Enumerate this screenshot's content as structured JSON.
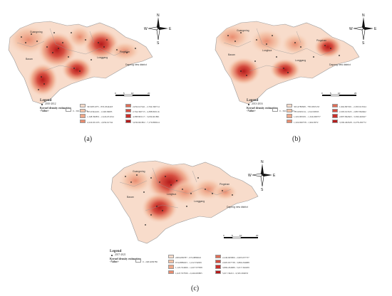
{
  "panels": [
    {
      "id": "a",
      "caption": "(a)",
      "legend_title": "Legend",
      "point_label": "2010-2012",
      "kde_label": "Kernel density estimation",
      "value_label": "<Value>",
      "classes": [
        "0 - 363.9831074",
        "363.9831075 - 835.0344418",
        "835.0344419 - 1,348.39685",
        "1,348.396851 - 2,224.651194",
        "2,224.651195 - 2,656.61744",
        "2,656.617441 - 2,764.390714",
        "2,764.390715 - 4,388.863116",
        "4,388.863117 - 5,636.661801",
        "5,636.661802 - 7,176.899614"
      ],
      "place_labels": [
        "Guangming",
        "Baoan",
        "Longgang",
        "Pingshan",
        "Dapeng new district"
      ]
    },
    {
      "id": "b",
      "caption": "(b)",
      "legend_title": "Legend",
      "point_label": "2013-2016",
      "kde_label": "Kernel density estimation",
      "value_label": "<Value>",
      "classes": [
        "0 - 363.4780827",
        "363.4780828 - 785.9393133",
        "785.9393134 - 1,322.99593",
        "1,322.995931 - 1,324.699757",
        "1,324.699758 - 1,962.8072",
        "1,962.807201 - 2,393.913324",
        "2,393.913325 - 2,897.862662",
        "2,897.862663 - 3,590.402627",
        "3,590.402628 - 6,278.436772"
      ],
      "place_labels": [
        "Guangming",
        "Baoan",
        "Longhua",
        "Longgang",
        "Pingshan",
        "Dapeng new district"
      ]
    },
    {
      "id": "c",
      "caption": "(c)",
      "legend_title": "Legend",
      "point_label": "2017-2021",
      "kde_label": "Kernel density estimation",
      "value_label": "<Value>",
      "classes": [
        "0 - 248.6299786",
        "248.6299787 - 674.0889022",
        "674.0889023 - 1,122.554965",
        "1,122.554966 - 1,647.557838",
        "1,647.557839 - 2,246.665805",
        "2,246.665806 - 2,905.657737",
        "2,905.657738 - 3,869.264688",
        "3,869.264689 - 5,017.362209",
        "5,017.36221 - 6,565.366053"
      ],
      "place_labels": [
        "Guangming",
        "Baoan",
        "Longhua",
        "Longgang",
        "Pingshan",
        "Dapeng new district"
      ]
    }
  ],
  "colors": {
    "class_colors": [
      "#ffffff",
      "#f8dccb",
      "#f4c3a7",
      "#efa788",
      "#e98c6f",
      "#e06e57",
      "#d64e40",
      "#c9302c",
      "#b51b1b"
    ],
    "boundary": "#9a9a9a",
    "point": "#222222"
  },
  "compass": {
    "n": "N",
    "e": "E",
    "s": "S",
    "w": "W"
  },
  "scale_ticks": [
    "0",
    "5",
    "10",
    "20"
  ]
}
